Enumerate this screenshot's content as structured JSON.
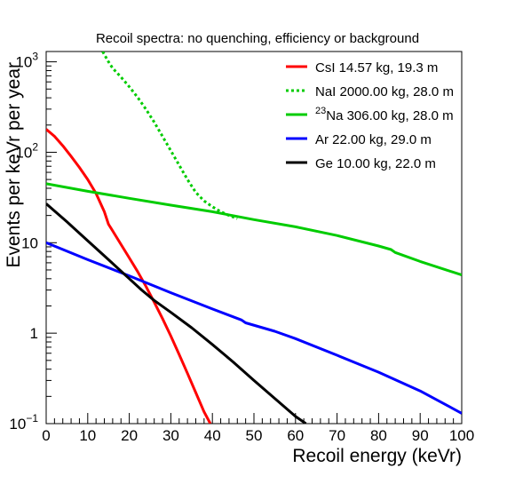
{
  "chart_data": {
    "type": "line",
    "title": "Recoil spectra: no quenching, efficiency or background",
    "xlabel": "Recoil energy (keVr)",
    "ylabel": "Events per keVr per year",
    "xlim": [
      0,
      100
    ],
    "ylim": [
      0.1,
      1300
    ],
    "yscale": "log",
    "grid": false,
    "legend_position": "top-right",
    "x_ticks": [
      0,
      10,
      20,
      30,
      40,
      50,
      60,
      70,
      80,
      90,
      100
    ],
    "x_tick_labels": [
      "0",
      "10",
      "20",
      "30",
      "40",
      "50",
      "60",
      "70",
      "80",
      "90",
      "100"
    ],
    "y_ticks": [
      0.1,
      1,
      10,
      100,
      1000
    ],
    "y_tick_labels": [
      {
        "base": "10",
        "exp": "−1"
      },
      {
        "base": "1",
        "exp": ""
      },
      {
        "base": "10",
        "exp": ""
      },
      {
        "base": "10",
        "exp": "2"
      },
      {
        "base": "10",
        "exp": "3"
      }
    ],
    "series": [
      {
        "name": "CsI 14.57 kg,  19.3 m",
        "color": "#ff0000",
        "dash": "solid",
        "x": [
          0,
          2,
          4,
          6,
          8,
          10,
          12,
          14,
          15,
          16,
          18,
          20,
          22,
          24,
          26,
          28,
          30,
          32,
          34,
          36,
          38,
          39.5
        ],
        "y": [
          180,
          150,
          118,
          90,
          68,
          50,
          35,
          22,
          16,
          13.5,
          9.6,
          6.8,
          4.8,
          3.3,
          2.2,
          1.45,
          0.93,
          0.58,
          0.36,
          0.22,
          0.135,
          0.1
        ]
      },
      {
        "name_main": "NaI 2000.00 kg,  28.0 m",
        "name": "NaI 2000.00 kg,  28.0 m",
        "color": "#00cc00",
        "dash": "dotted",
        "x": [
          13.6,
          15,
          16,
          18,
          20,
          22,
          24,
          26,
          28,
          30,
          32,
          34,
          36,
          38,
          40,
          42,
          44,
          46
        ],
        "y": [
          1300,
          1000,
          850,
          680,
          530,
          405,
          300,
          215,
          150,
          104,
          72,
          50,
          36,
          29,
          25,
          22,
          20,
          18.5
        ]
      },
      {
        "name_sup": "23",
        "name_main": "Na 306.00 kg,  28.0 m",
        "color": "#00cc00",
        "dash": "solid",
        "x": [
          0,
          10,
          20,
          30,
          40,
          50,
          60,
          70,
          80,
          83,
          84,
          90,
          100
        ],
        "y": [
          45,
          37,
          31,
          26,
          22,
          18,
          15,
          12,
          9.2,
          8.4,
          7.8,
          6.2,
          4.4
        ]
      },
      {
        "name": "Ar 22.00 kg,  29.0 m",
        "color": "#0000ff",
        "dash": "solid",
        "x": [
          0,
          10,
          20,
          30,
          40,
          47,
          48,
          55,
          60,
          70,
          80,
          90,
          100
        ],
        "y": [
          10,
          6.5,
          4.3,
          2.8,
          1.85,
          1.4,
          1.3,
          1.05,
          0.87,
          0.57,
          0.37,
          0.23,
          0.13
        ]
      },
      {
        "name": "Ge 10.00 kg,  22.0 m",
        "color": "#000000",
        "dash": "solid",
        "x": [
          0,
          5,
          10,
          15,
          20,
          23,
          26,
          30,
          35,
          40,
          45,
          50,
          55,
          60,
          62.5
        ],
        "y": [
          27,
          17,
          10.5,
          6.5,
          4.0,
          3.0,
          2.3,
          1.7,
          1.15,
          0.75,
          0.48,
          0.3,
          0.19,
          0.12,
          0.1
        ]
      }
    ]
  }
}
